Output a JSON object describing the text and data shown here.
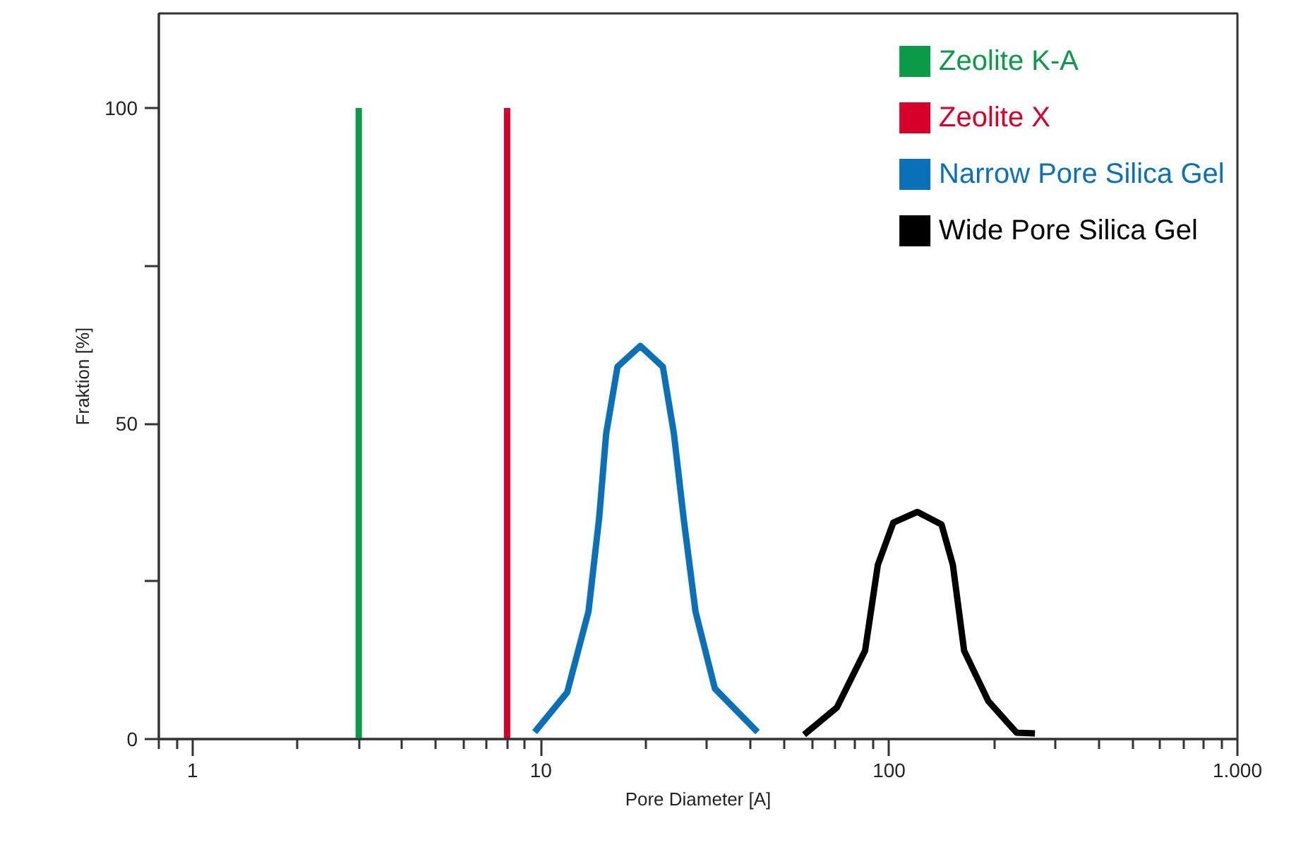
{
  "chart_data": {
    "type": "line",
    "xlabel": "Pore Diameter [A]",
    "ylabel": "Fraktion [%]",
    "log": "x",
    "xlim": [
      0.8,
      1000
    ],
    "xticks": [
      1,
      10,
      100,
      {
        "value": 1000,
        "label": "1.000"
      }
    ],
    "ylim": [
      0,
      115
    ],
    "yticks": [
      0,
      {
        "value": 25,
        "label": null
      },
      50,
      {
        "value": 75,
        "label": null
      },
      100
    ],
    "grid": false,
    "legend": "top right",
    "marker": "none",
    "line_style": "solid",
    "series": [
      {
        "name": "Zeolite K-A",
        "color": "#0a9a48",
        "x": [
          3,
          3
        ],
        "values": [
          0,
          100
        ]
      },
      {
        "name": "Zeolite X",
        "color": "#d8002a",
        "x": [
          8,
          8
        ],
        "values": [
          0,
          100
        ]
      },
      {
        "name": "Narrow Pore Silica Gel",
        "color": "#0a70b8",
        "x": [
          9.6,
          11.9,
          13.7,
          14.7,
          15.4,
          16.6,
          19.3,
          22.4,
          24.1,
          25.7,
          27.8,
          31.6,
          41.9
        ],
        "values": [
          1.1,
          7.4,
          20.2,
          35,
          48.4,
          59,
          62.3,
          59,
          48.4,
          35,
          20.2,
          8,
          1.1
        ]
      },
      {
        "name": "Wide Pore Silica Gel",
        "color": "#000000",
        "x": [
          57,
          70.8,
          85.3,
          92.8,
          102.8,
          120.6,
          141.4,
          152.4,
          164.2,
          192.7,
          232.3,
          262.2
        ],
        "values": [
          0.7,
          5,
          14,
          27.6,
          34.3,
          36,
          34,
          27.6,
          14,
          6,
          1,
          0.9
        ]
      }
    ]
  }
}
